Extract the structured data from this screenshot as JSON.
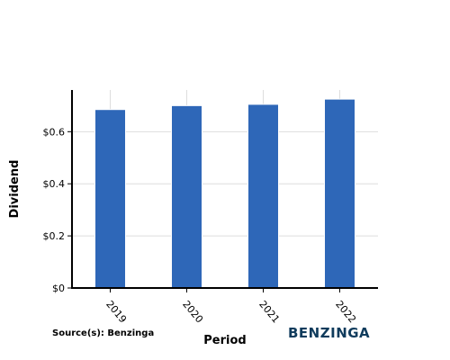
{
  "chart_data": {
    "type": "bar",
    "categories": [
      "2019",
      "2020",
      "2021",
      "2022"
    ],
    "values": [
      0.685,
      0.7,
      0.705,
      0.725
    ],
    "xlabel": "Period",
    "ylabel": "Dividend",
    "ylim": [
      0,
      0.76
    ],
    "yticks": [
      0,
      0.2,
      0.4,
      0.6
    ],
    "ytick_labels": [
      "$0",
      "$0.2",
      "$0.4",
      "$0.6"
    ],
    "grid": true,
    "bar_color": "#2e67b8"
  },
  "source_text": "Source(s): Benzinga",
  "logo_text": "BENZINGA",
  "colors": {
    "logo": "#0f3b5c",
    "grid": "#dddddd",
    "axis": "#000000"
  }
}
